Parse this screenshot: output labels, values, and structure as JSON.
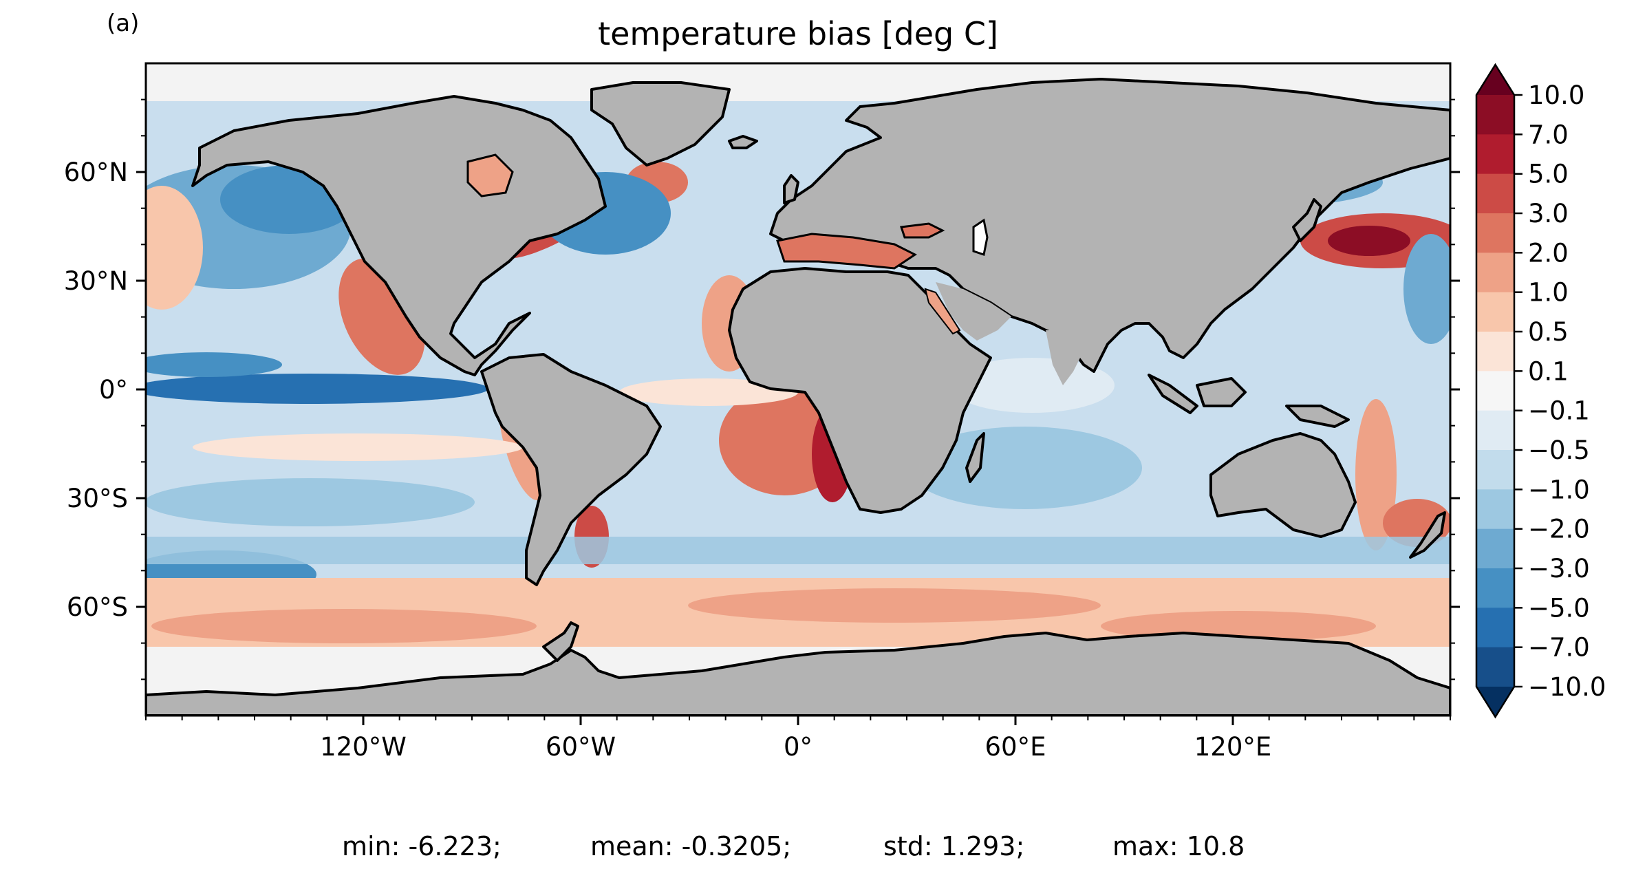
{
  "panel_label": "(a)",
  "title": "temperature bias [deg C]",
  "map": {
    "projection": "PlateCarree",
    "lon_range": [
      -180,
      180
    ],
    "lat_range": [
      -90,
      90
    ],
    "land_color": "#b3b3b3",
    "coastline_color": "#000000"
  },
  "axes": {
    "x_ticks": [
      {
        "value": -120,
        "label": "120°W"
      },
      {
        "value": -60,
        "label": "60°W"
      },
      {
        "value": 0,
        "label": "0°"
      },
      {
        "value": 60,
        "label": "60°E"
      },
      {
        "value": 120,
        "label": "120°E"
      }
    ],
    "y_ticks": [
      {
        "value": 60,
        "label": "60°N"
      },
      {
        "value": 30,
        "label": "30°N"
      },
      {
        "value": 0,
        "label": "0°"
      },
      {
        "value": -30,
        "label": "30°S"
      },
      {
        "value": -60,
        "label": "60°S"
      }
    ]
  },
  "colorbar": {
    "colormap": "RdBu_r",
    "extend": "both",
    "levels": [
      10.0,
      7.0,
      5.0,
      3.0,
      2.0,
      1.0,
      0.5,
      0.1,
      -0.1,
      -0.5,
      -1.0,
      -2.0,
      -3.0,
      -5.0,
      -7.0,
      -10.0
    ],
    "level_labels": [
      "10.0",
      "7.0",
      "5.0",
      "3.0",
      "2.0",
      "1.0",
      "0.5",
      "0.1",
      "−0.1",
      "−0.5",
      "−1.0",
      "−2.0",
      "−3.0",
      "−5.0",
      "−7.0",
      "−10.0"
    ],
    "colors": [
      "#8c0d25",
      "#b01c2e",
      "#cc4b46",
      "#de7560",
      "#eea287",
      "#f8c6ab",
      "#fbe4d7",
      "#f6f6f6",
      "#e0ebf3",
      "#c2dcec",
      "#9dc8e1",
      "#6eaad1",
      "#4690c3",
      "#2670b1",
      "#174f8a"
    ],
    "over_color": "#67001f",
    "under_color": "#053061"
  },
  "stats": {
    "min": "min: -6.223;",
    "mean": "mean: -0.3205;",
    "std": "std: 1.293;",
    "max": "max: 10.8"
  }
}
